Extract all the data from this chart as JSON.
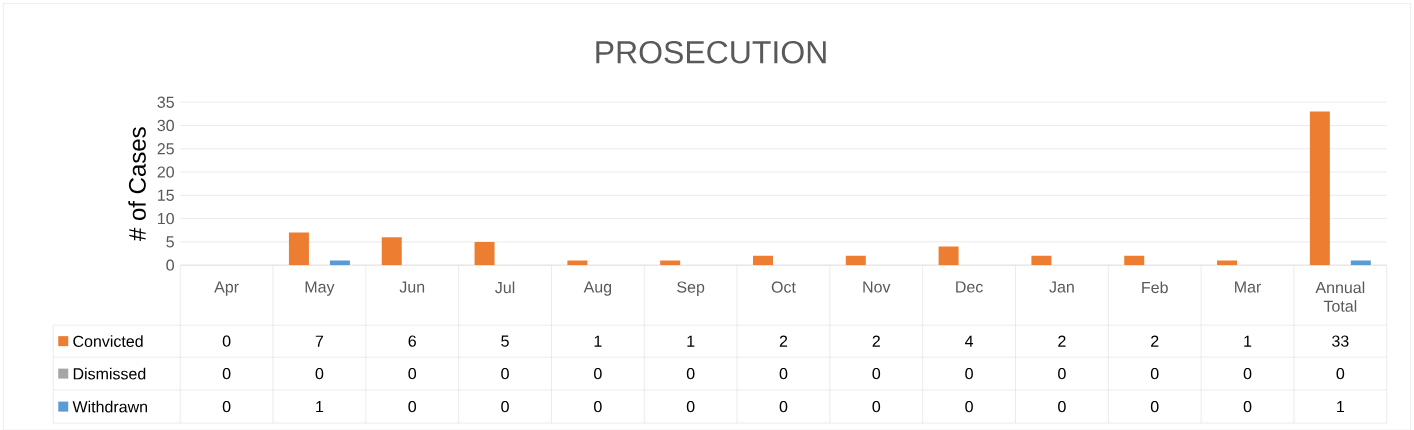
{
  "chart_data": {
    "type": "bar",
    "title": "PROSECUTION",
    "ylabel": "# of Cases",
    "categories": [
      "Apr",
      "May",
      "Jun",
      "Jul",
      "Aug",
      "Sep",
      "Oct",
      "Nov",
      "Dec",
      "Jan",
      "Feb",
      "Mar",
      "Annual Total"
    ],
    "series": [
      {
        "name": "Convicted",
        "color": "#ed7d31",
        "values": [
          0,
          7,
          6,
          5,
          1,
          1,
          2,
          2,
          4,
          2,
          2,
          1,
          33
        ]
      },
      {
        "name": "Dismissed",
        "color": "#a5a5a5",
        "values": [
          0,
          0,
          0,
          0,
          0,
          0,
          0,
          0,
          0,
          0,
          0,
          0,
          0
        ]
      },
      {
        "name": "Withdrawn",
        "color": "#5b9bd5",
        "values": [
          0,
          1,
          0,
          0,
          0,
          0,
          0,
          0,
          0,
          0,
          0,
          0,
          1
        ]
      }
    ],
    "ylim": [
      0,
      35
    ],
    "yticks": [
      0,
      5,
      10,
      15,
      20,
      25,
      30,
      35
    ],
    "grid": "y",
    "legend": "bottom",
    "data_labels": true
  }
}
